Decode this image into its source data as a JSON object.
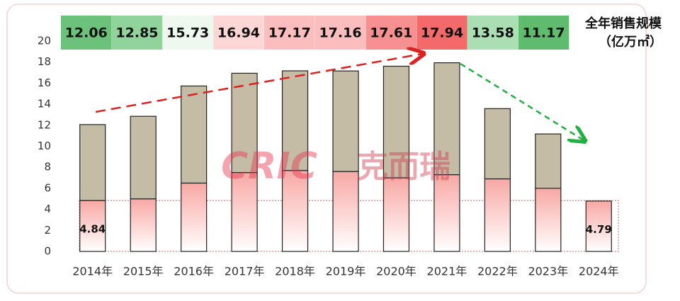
{
  "chart_data": {
    "type": "stacked_bar",
    "title": "全年销售规模",
    "subtitle": "（亿万㎡）",
    "watermark": [
      "CRIC",
      "克而瑞"
    ],
    "categories": [
      "2014年",
      "2015年",
      "2016年",
      "2017年",
      "2018年",
      "2019年",
      "2020年",
      "2021年",
      "2022年",
      "2023年",
      "2024年"
    ],
    "totals": [
      12.06,
      12.85,
      15.73,
      16.94,
      17.17,
      17.16,
      17.61,
      17.94,
      13.58,
      11.17
    ],
    "total_colors": [
      "#6cc27a",
      "#90d39b",
      "#eef8ef",
      "#fdd6d6",
      "#fbbdbd",
      "#fbbdbd",
      "#f79090",
      "#f46a6a",
      "#abdfb3",
      "#5fbb6d"
    ],
    "series": [
      {
        "color": "#fcc4c2",
        "values": [
          4.84,
          5.0,
          6.5,
          7.5,
          7.7,
          7.6,
          7.0,
          7.3,
          6.9,
          6.0,
          4.79
        ],
        "value_labels": [
          "4.84",
          null,
          null,
          null,
          null,
          null,
          null,
          null,
          null,
          null,
          "4.79"
        ]
      },
      {
        "color": "#c5bca6",
        "values": [
          7.22,
          7.85,
          9.23,
          9.44,
          9.47,
          9.56,
          10.61,
          10.64,
          6.68,
          5.17,
          null
        ]
      }
    ],
    "ylim": [
      0,
      20
    ],
    "yticks": [
      0,
      2,
      4,
      6,
      8,
      10,
      12,
      14,
      16,
      18,
      20
    ]
  }
}
